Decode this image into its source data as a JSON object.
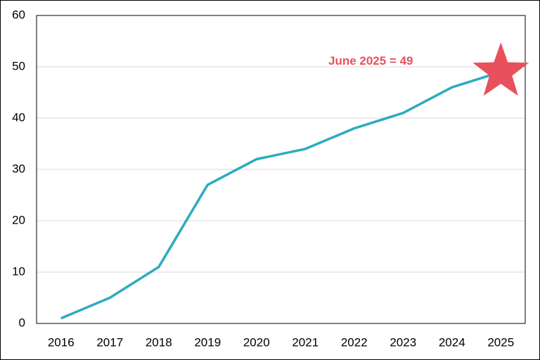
{
  "chart_data": {
    "type": "line",
    "categories": [
      "2016",
      "2017",
      "2018",
      "2019",
      "2020",
      "2021",
      "2022",
      "2023",
      "2024",
      "2025"
    ],
    "values": [
      1,
      5,
      11,
      27,
      32,
      34,
      38,
      41,
      46,
      49
    ],
    "color": "#2eaac1",
    "ylim": [
      0,
      60
    ],
    "yticks": [
      0,
      10,
      20,
      30,
      40,
      50,
      60
    ],
    "grid": true,
    "annotation": {
      "text": "June 2025 = 49",
      "color": "#e8505b",
      "marker": "star"
    }
  }
}
